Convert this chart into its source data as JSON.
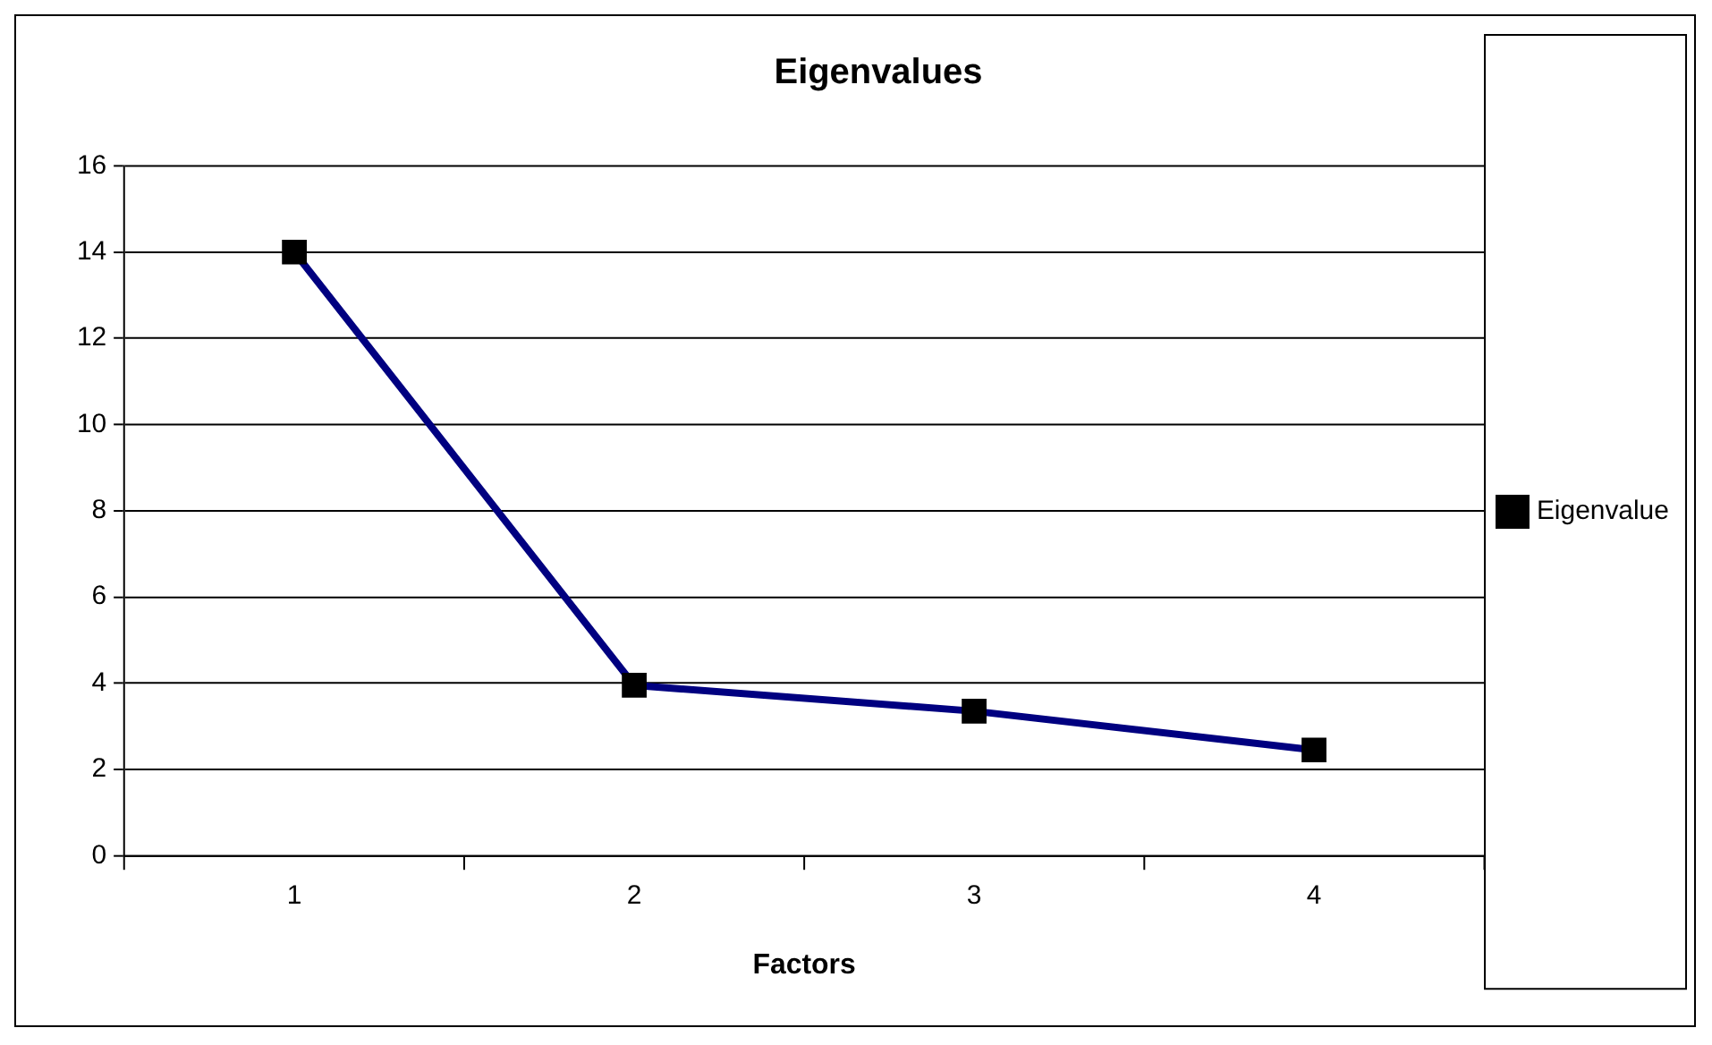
{
  "chart_data": {
    "type": "line",
    "title": "Eigenvalues",
    "xlabel": "Factors",
    "categories": [
      "1",
      "2",
      "3",
      "4"
    ],
    "series": [
      {
        "name": "Eigenvalue",
        "color": "#000080",
        "values": [
          14,
          3.95,
          3.35,
          2.45
        ]
      }
    ],
    "ylim": [
      0,
      16
    ],
    "yticks": [
      0,
      2,
      4,
      6,
      8,
      10,
      12,
      14,
      16
    ],
    "grid": "y",
    "legend": "right",
    "marker": "square",
    "line_style": "solid"
  }
}
